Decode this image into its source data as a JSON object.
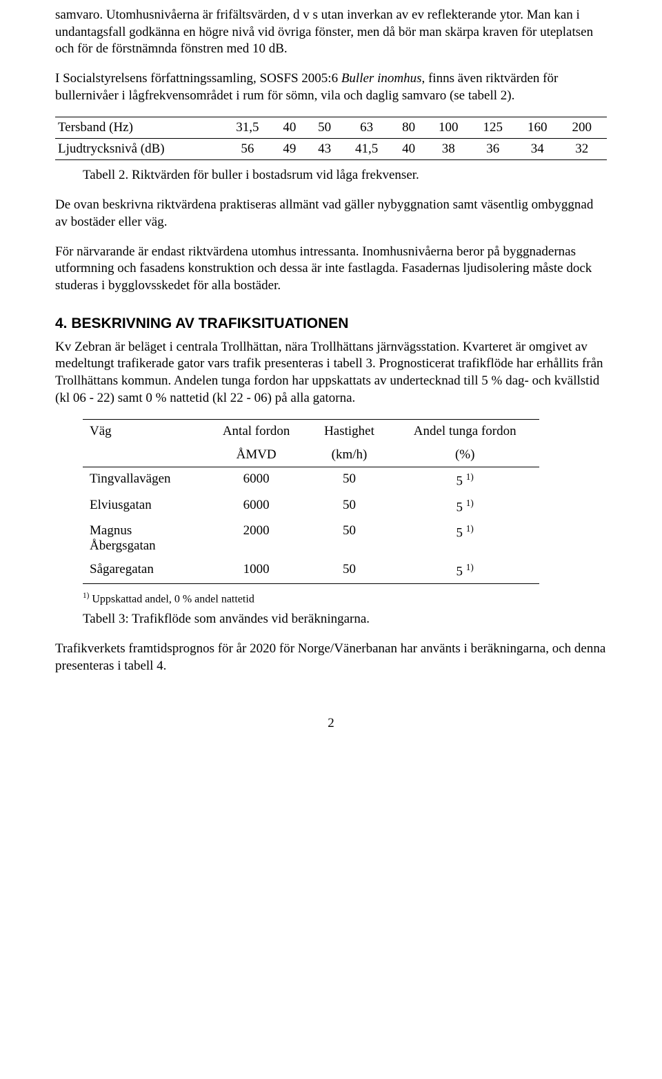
{
  "para": {
    "p1": "samvaro. Utomhusnivåerna är frifältsvärden, d v s utan inverkan av ev reflekterande ytor. Man kan i undantagsfall godkänna en högre nivå vid övriga fönster, men då bör man skärpa kraven för uteplatsen och för de förstnämnda fönstren med 10 dB.",
    "p2a": "I Socialstyrelsens författningssamling, SOSFS 2005:6 ",
    "p2b": "Buller inomhus",
    "p2c": ", finns även riktvärden för bullernivåer i lågfrekvensområdet i rum för sömn, vila och daglig samvaro (se tabell 2).",
    "p3": "De ovan beskrivna riktvärdena praktiseras allmänt vad gäller nybyggnation samt väsentlig ombyggnad av bostäder eller väg.",
    "p4": "För närvarande är endast riktvärdena utomhus intressanta. Inomhusnivåerna beror på byggnadernas utformning och fasadens konstruktion och dessa är inte fastlagda. Fasadernas ljudisolering måste dock studeras i bygglovsskedet för alla bostäder.",
    "p5": "Kv Zebran är beläget i centrala Trollhättan, nära Trollhättans järnvägsstation. Kvarteret är omgivet av medeltungt trafikerade gator vars trafik presenteras i tabell 3. Prognosticerat trafikflöde har erhållits från Trollhättans kommun. Andelen tunga fordon har uppskattats av undertecknad till 5 % dag- och kvällstid (kl 06 - 22) samt 0 % nattetid (kl 22 - 06) på alla gatorna.",
    "p6": "Trafikverkets framtidsprognos för år 2020 för Norge/Vänerbanan har använts i beräkningarna, och denna presenteras i tabell 4."
  },
  "heading": {
    "h4": "4. BESKRIVNING AV TRAFIKSITUATIONEN"
  },
  "table1": {
    "caption": "Tabell 2. Riktvärden för buller i bostadsrum vid låga frekvenser.",
    "r1": {
      "label": "Tersband (Hz)",
      "c1": "31,5",
      "c2": "40",
      "c3": "50",
      "c4": "63",
      "c5": "80",
      "c6": "100",
      "c7": "125",
      "c8": "160",
      "c9": "200"
    },
    "r2": {
      "label": "Ljudtrycksnivå (dB)",
      "c1": "56",
      "c2": "49",
      "c3": "43",
      "c4": "41,5",
      "c5": "40",
      "c6": "38",
      "c7": "36",
      "c8": "34",
      "c9": "32"
    }
  },
  "table2": {
    "hdr": {
      "c1": "Väg",
      "c2a": "Antal fordon",
      "c2b": "ÅMVD",
      "c3a": "Hastighet",
      "c3b": "(km/h)",
      "c4a": "Andel tunga fordon",
      "c4b": "(%)"
    },
    "r1": {
      "c1": "Tingvallavägen",
      "c2": "6000",
      "c3": "50",
      "c4": "5",
      "sup": "1)"
    },
    "r2": {
      "c1": "Elviusgatan",
      "c2": "6000",
      "c3": "50",
      "c4": "5",
      "sup": "1)"
    },
    "r3": {
      "c1a": "Magnus",
      "c1b": "Åbergsgatan",
      "c2": "2000",
      "c3": "50",
      "c4": "5",
      "sup": "1)"
    },
    "r4": {
      "c1": "Sågaregatan",
      "c2": "1000",
      "c3": "50",
      "c4": "5",
      "sup": "1)"
    },
    "footnote_sup": "1)",
    "footnote": " Uppskattad andel, 0 % andel nattetid",
    "caption": "Tabell 3: Trafikflöde som användes vid beräkningarna."
  },
  "pagenum": "2"
}
